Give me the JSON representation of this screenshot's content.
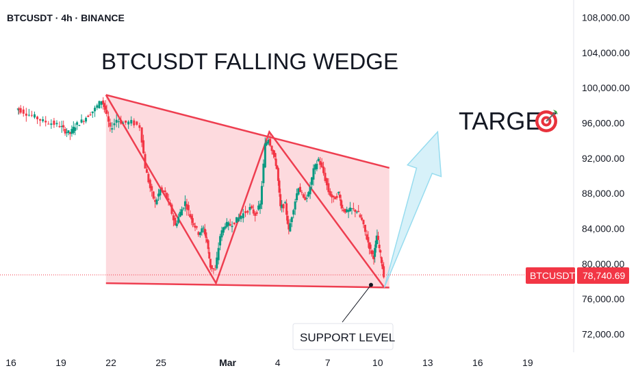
{
  "header": {
    "label": "BTCUSDT · 4h · BINANCE"
  },
  "price_tag": {
    "symbol": "BTCUSDT",
    "price": "78,740.69"
  },
  "colors": {
    "up": "#089981",
    "down": "#f23645",
    "wedge_line": "#ee3e50",
    "wedge_fill": "#fdd4d8",
    "arrow_fill": "#cdeef7",
    "arrow_stroke": "#97dcef"
  },
  "chart_data": {
    "type": "candlestick",
    "title": "BTCUSDT  FALLING WEDGE",
    "yticks": [
      "108,000.00",
      "104,000.00",
      "100,000.00",
      "96,000.00",
      "92,000.00",
      "88,000.00",
      "84,000.00",
      "80,000.00",
      "76,000.00",
      "72,000.00"
    ],
    "ytick_values": [
      108000,
      104000,
      100000,
      96000,
      92000,
      88000,
      84000,
      80000,
      76000,
      72000
    ],
    "ylim": [
      70000,
      110000
    ],
    "xlim": [
      16.5,
      48.5
    ],
    "xticks": [
      {
        "label": "16",
        "x": 16
      },
      {
        "label": "19",
        "x": 19
      },
      {
        "label": "22",
        "x": 22
      },
      {
        "label": "25",
        "x": 25
      },
      {
        "label": "Mar",
        "x": 29
      },
      {
        "label": "4",
        "x": 32
      },
      {
        "label": "7",
        "x": 35
      },
      {
        "label": "10",
        "x": 38
      },
      {
        "label": "13",
        "x": 41
      },
      {
        "label": "16",
        "x": 44
      },
      {
        "label": "19",
        "x": 47
      }
    ],
    "last_price": 78740.69,
    "annotations": {
      "target_label": "TARGET",
      "target_icon": "target-bullseye-icon",
      "support_label": "SUPPORT LEVEL"
    },
    "wedge": {
      "upper": [
        [
          21.7,
          99200
        ],
        [
          38.7,
          90900
        ]
      ],
      "lower": [
        [
          21.7,
          77800
        ],
        [
          38.7,
          77300
        ]
      ],
      "zigzag": [
        [
          21.7,
          99200
        ],
        [
          28.3,
          77800
        ],
        [
          31.5,
          95000
        ],
        [
          38.4,
          77300
        ]
      ],
      "support_point": [
        37.6,
        77600
      ]
    },
    "projection_arrow": {
      "from": [
        38.4,
        77300
      ],
      "to": [
        41.6,
        95000
      ]
    },
    "close_series": [
      [
        16.5,
        97600
      ],
      [
        17.0,
        97100
      ],
      [
        17.5,
        96700
      ],
      [
        18.0,
        96200
      ],
      [
        18.5,
        96000
      ],
      [
        19.0,
        95700
      ],
      [
        19.3,
        95100
      ],
      [
        19.6,
        94800
      ],
      [
        19.9,
        95700
      ],
      [
        20.3,
        96200
      ],
      [
        20.7,
        96900
      ],
      [
        21.1,
        97600
      ],
      [
        21.5,
        98600
      ],
      [
        21.7,
        97500
      ],
      [
        22.0,
        95300
      ],
      [
        22.4,
        96400
      ],
      [
        22.8,
        96000
      ],
      [
        23.3,
        96100
      ],
      [
        23.8,
        95600
      ],
      [
        24.1,
        91000
      ],
      [
        24.4,
        88600
      ],
      [
        24.7,
        86900
      ],
      [
        25.0,
        88400
      ],
      [
        25.3,
        88000
      ],
      [
        25.6,
        86500
      ],
      [
        25.9,
        84300
      ],
      [
        26.2,
        85800
      ],
      [
        26.5,
        87000
      ],
      [
        26.8,
        85400
      ],
      [
        27.0,
        84600
      ],
      [
        27.3,
        83500
      ],
      [
        27.6,
        84000
      ],
      [
        27.8,
        82500
      ],
      [
        28.0,
        79700
      ],
      [
        28.3,
        79200
      ],
      [
        28.6,
        83200
      ],
      [
        28.9,
        84500
      ],
      [
        29.2,
        84400
      ],
      [
        29.6,
        85000
      ],
      [
        30.0,
        85700
      ],
      [
        30.4,
        86300
      ],
      [
        30.7,
        85600
      ],
      [
        31.0,
        86700
      ],
      [
        31.3,
        93500
      ],
      [
        31.5,
        94300
      ],
      [
        31.8,
        92400
      ],
      [
        32.0,
        90800
      ],
      [
        32.2,
        86400
      ],
      [
        32.5,
        86700
      ],
      [
        32.7,
        83700
      ],
      [
        33.0,
        86400
      ],
      [
        33.3,
        88800
      ],
      [
        33.6,
        87300
      ],
      [
        33.9,
        87900
      ],
      [
        34.2,
        90600
      ],
      [
        34.5,
        91900
      ],
      [
        34.8,
        90300
      ],
      [
        35.1,
        88200
      ],
      [
        35.4,
        87300
      ],
      [
        35.7,
        88000
      ],
      [
        35.9,
        86300
      ],
      [
        36.2,
        85900
      ],
      [
        36.5,
        86200
      ],
      [
        36.8,
        86000
      ],
      [
        37.1,
        84900
      ],
      [
        37.4,
        82900
      ],
      [
        37.6,
        81500
      ],
      [
        37.8,
        80800
      ],
      [
        38.0,
        83200
      ],
      [
        38.2,
        81000
      ],
      [
        38.4,
        78740
      ]
    ]
  }
}
